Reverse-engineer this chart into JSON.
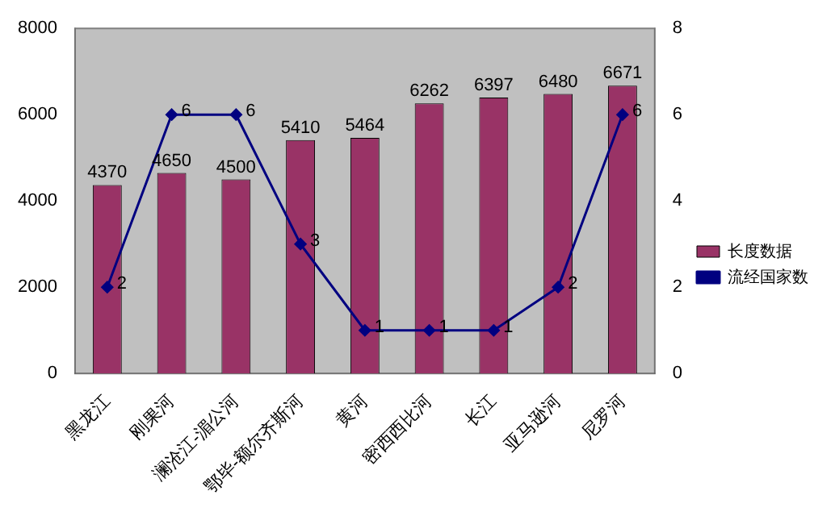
{
  "chart_data": {
    "type": "bar",
    "categories": [
      "黑龙江",
      "刚果河",
      "澜沧江-湄公河",
      "鄂毕-额尔齐斯河",
      "黄河",
      "密西西比河",
      "长江",
      "亚马逊河",
      "尼罗河"
    ],
    "series": [
      {
        "name": "长度数据",
        "color": "#993366",
        "values": [
          4370,
          4650,
          4500,
          5410,
          5464,
          6262,
          6397,
          6480,
          6671
        ]
      },
      {
        "name": "流经国家数",
        "type": "line",
        "axis": "y2",
        "color": "#000080",
        "values": [
          2,
          6,
          6,
          3,
          1,
          1,
          1,
          2,
          6
        ]
      }
    ],
    "ylim": [
      0,
      8000
    ],
    "yticks": [
      0,
      2000,
      4000,
      6000,
      8000
    ],
    "y2lim": [
      0,
      8
    ],
    "y2ticks": [
      0,
      2,
      4,
      6,
      8
    ],
    "data_labels": true,
    "legend": "right",
    "grid": false,
    "marker": "diamond"
  }
}
